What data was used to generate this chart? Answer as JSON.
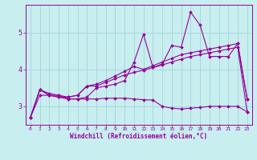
{
  "xlabel": "Windchill (Refroidissement éolien,°C)",
  "ylabel": "",
  "background_color": "#c8eef0",
  "grid_color": "#a8d8dc",
  "line_color": "#990099",
  "xlim": [
    -0.5,
    23.5
  ],
  "ylim": [
    2.5,
    5.75
  ],
  "xticks": [
    0,
    1,
    2,
    3,
    4,
    5,
    6,
    7,
    8,
    9,
    10,
    11,
    12,
    13,
    14,
    15,
    16,
    17,
    18,
    19,
    20,
    21,
    22,
    23
  ],
  "yticks": [
    3,
    4,
    5
  ],
  "hours": [
    0,
    1,
    2,
    3,
    4,
    5,
    6,
    7,
    8,
    9,
    10,
    11,
    12,
    13,
    14,
    15,
    16,
    17,
    18,
    19,
    20,
    21,
    22,
    23
  ],
  "line1": [
    2.7,
    3.45,
    3.3,
    3.3,
    3.2,
    3.2,
    3.25,
    3.5,
    3.55,
    3.6,
    3.7,
    4.2,
    4.95,
    4.05,
    4.15,
    4.65,
    4.6,
    5.55,
    5.2,
    4.35,
    4.35,
    4.35,
    4.7,
    3.2
  ],
  "line2": [
    2.7,
    3.45,
    3.3,
    3.25,
    3.25,
    3.3,
    3.55,
    3.55,
    3.65,
    3.75,
    3.85,
    3.92,
    3.98,
    4.05,
    4.12,
    4.2,
    4.28,
    4.35,
    4.4,
    4.45,
    4.5,
    4.55,
    4.6,
    2.85
  ],
  "line3": [
    2.7,
    3.3,
    3.3,
    3.25,
    3.2,
    3.2,
    3.2,
    3.2,
    3.22,
    3.22,
    3.22,
    3.2,
    3.18,
    3.17,
    3.0,
    2.95,
    2.93,
    2.95,
    2.97,
    3.0,
    3.0,
    3.0,
    3.0,
    2.85
  ],
  "line4": [
    2.7,
    3.45,
    3.35,
    3.3,
    3.25,
    3.3,
    3.55,
    3.6,
    3.7,
    3.82,
    3.95,
    4.08,
    4.0,
    4.1,
    4.2,
    4.3,
    4.4,
    4.45,
    4.5,
    4.55,
    4.6,
    4.65,
    4.7,
    3.2
  ]
}
